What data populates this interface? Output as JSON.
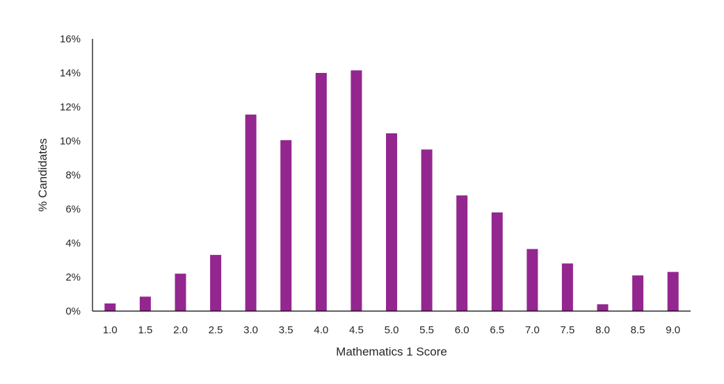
{
  "chart_data": {
    "type": "bar",
    "xlabel": "Mathematics 1 Score",
    "ylabel": "% Candidates",
    "categories": [
      "1.0",
      "1.5",
      "2.0",
      "2.5",
      "3.0",
      "3.5",
      "4.0",
      "4.5",
      "5.0",
      "5.5",
      "6.0",
      "6.5",
      "7.0",
      "7.5",
      "8.0",
      "8.5",
      "9.0"
    ],
    "series": [
      {
        "values": [
          0.45,
          0.85,
          2.2,
          3.3,
          11.55,
          10.05,
          14.0,
          14.15,
          10.45,
          9.5,
          6.8,
          5.8,
          3.65,
          2.8,
          0.4,
          2.1,
          2.3
        ],
        "color": "#93278F"
      }
    ],
    "ylim": [
      0,
      16
    ],
    "yticks": [
      0,
      2,
      4,
      6,
      8,
      10,
      12,
      14,
      16
    ],
    "ytick_labels": [
      "0%",
      "2%",
      "4%",
      "6%",
      "8%",
      "10%",
      "12%",
      "14%",
      "16%"
    ],
    "grid": false,
    "legend": false
  }
}
